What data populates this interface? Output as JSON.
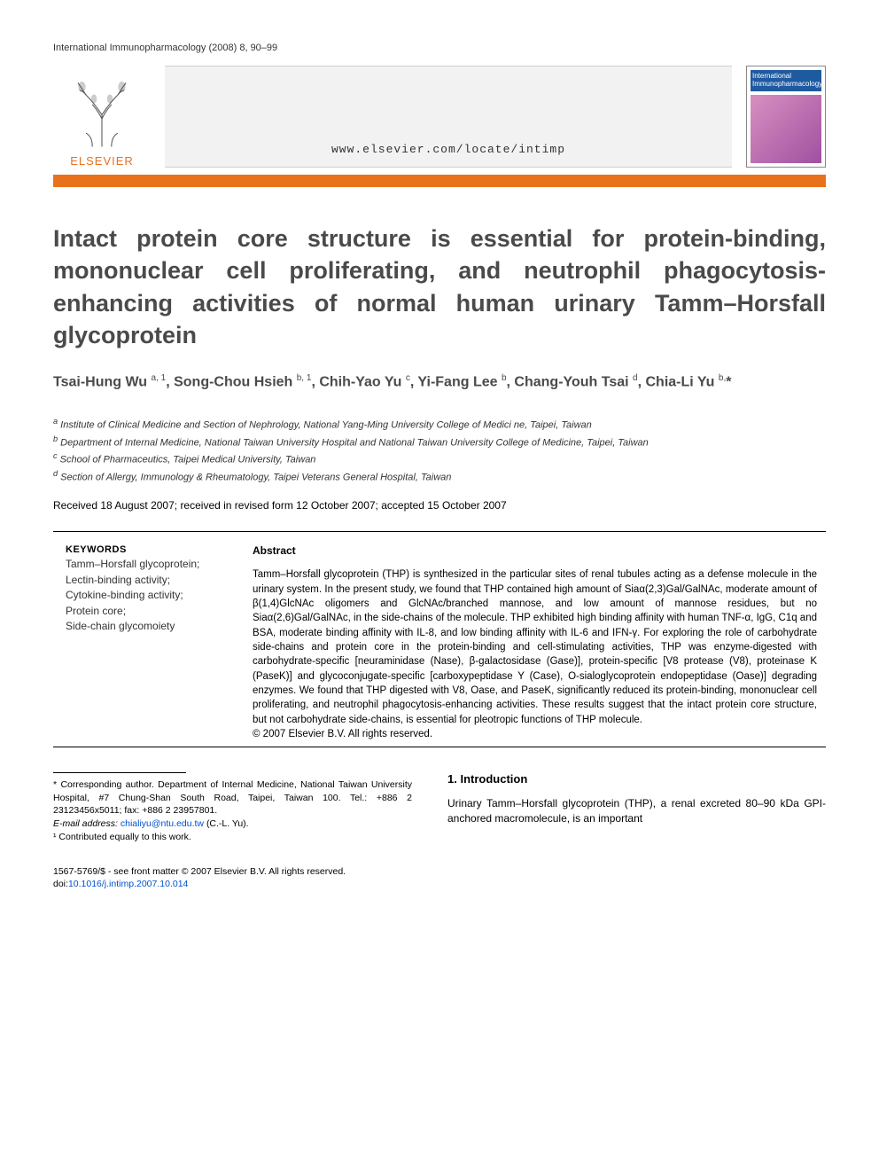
{
  "header": {
    "journal_ref": "International Immunopharmacology (2008) 8, 90–99"
  },
  "banner": {
    "publisher_name": "ELSEVIER",
    "url": "www.elsevier.com/locate/intimp",
    "journal_cover_title": "International Immunopharmacology"
  },
  "colors": {
    "accent_orange": "#e9711c",
    "title_gray": "#4a4a4a",
    "url_bar_bg": "#f2f2f2",
    "cover_title_bg": "#1e5aa0",
    "link_blue": "#0052cc"
  },
  "article": {
    "title": "Intact protein core structure is essential for protein-binding, mononuclear cell proliferating, and neutrophil phagocytosis-enhancing activities of normal human urinary Tamm–Horsfall glycoprotein",
    "authors_html": "Tsai-Hung Wu <sup>a, 1</sup>, Song-Chou Hsieh <sup>b, 1</sup>, Chih-Yao Yu <sup>c</sup>, Yi-Fang Lee <sup>b</sup>, Chang-Youh Tsai <sup>d</sup>, Chia-Li Yu <sup>b,</sup>*",
    "affiliations": {
      "a": "Institute of Clinical Medicine and Section of Nephrology, National Yang-Ming University College of Medici ne, Taipei, Taiwan",
      "b": "Department of Internal Medicine, National Taiwan University Hospital and National Taiwan University College of Medicine, Taipei, Taiwan",
      "c": "School of Pharmaceutics, Taipei Medical University, Taiwan",
      "d": "Section of Allergy, Immunology & Rheumatology, Taipei Veterans General Hospital, Taiwan"
    },
    "dates": "Received 18 August 2007; received in revised form 12 October 2007; accepted 15 October 2007"
  },
  "keywords": {
    "heading": "KEYWORDS",
    "items": [
      "Tamm–Horsfall glycoprotein;",
      "Lectin-binding activity;",
      "Cytokine-binding activity;",
      "Protein core;",
      "Side-chain glycomoiety"
    ]
  },
  "abstract": {
    "heading": "Abstract",
    "text": "Tamm–Horsfall glycoprotein (THP) is synthesized in the particular sites of renal tubules acting as a defense molecule in the urinary system. In the present study, we found that THP contained high amount of Siaα(2,3)Gal/GalNAc, moderate amount of β(1,4)GlcNAc oligomers and GlcNAc/branched mannose, and low amount of mannose residues, but no Siaα(2,6)Gal/GalNAc, in the side-chains of the molecule. THP exhibited high binding affinity with human TNF-α, IgG, C1q and BSA, moderate binding affinity with IL-8, and low binding affinity with IL-6 and IFN-γ. For exploring the role of carbohydrate side-chains and protein core in the protein-binding and cell-stimulating activities, THP was enzyme-digested with carbohydrate-specific [neuraminidase (Nase), β-galactosidase (Gase)], protein-specific [V8 protease (V8), proteinase K (PaseK)] and glycoconjugate-specific [carboxypeptidase Y (Case), O-sialoglycoprotein endopeptidase (Oase)] degrading enzymes. We found that THP digested with V8, Oase, and PaseK, significantly reduced its protein-binding, mononuclear cell proliferating, and neutrophil phagocytosis-enhancing activities. These results suggest that the intact protein core structure, but not carbohydrate side-chains, is essential for pleotropic functions of THP molecule.",
    "copyright": "© 2007 Elsevier B.V. All rights reserved."
  },
  "footnotes": {
    "corresponding": "* Corresponding author. Department of Internal Medicine, National Taiwan University Hospital, #7 Chung-Shan South Road, Taipei, Taiwan 100. Tel.: +886 2 23123456x5011; fax: +886 2 23957801.",
    "email_label": "E-mail address:",
    "email": "chialiyu@ntu.edu.tw",
    "email_name": "(C.-L. Yu).",
    "equal": "¹ Contributed equally to this work."
  },
  "intro": {
    "heading": "1. Introduction",
    "text": "Urinary Tamm–Horsfall glycoprotein (THP), a renal excreted 80–90 kDa GPI-anchored macromolecule, is an important"
  },
  "doi": {
    "line1": "1567-5769/$ - see front matter © 2007 Elsevier B.V. All rights reserved.",
    "line2_prefix": "doi:",
    "line2_link": "10.1016/j.intimp.2007.10.014"
  }
}
